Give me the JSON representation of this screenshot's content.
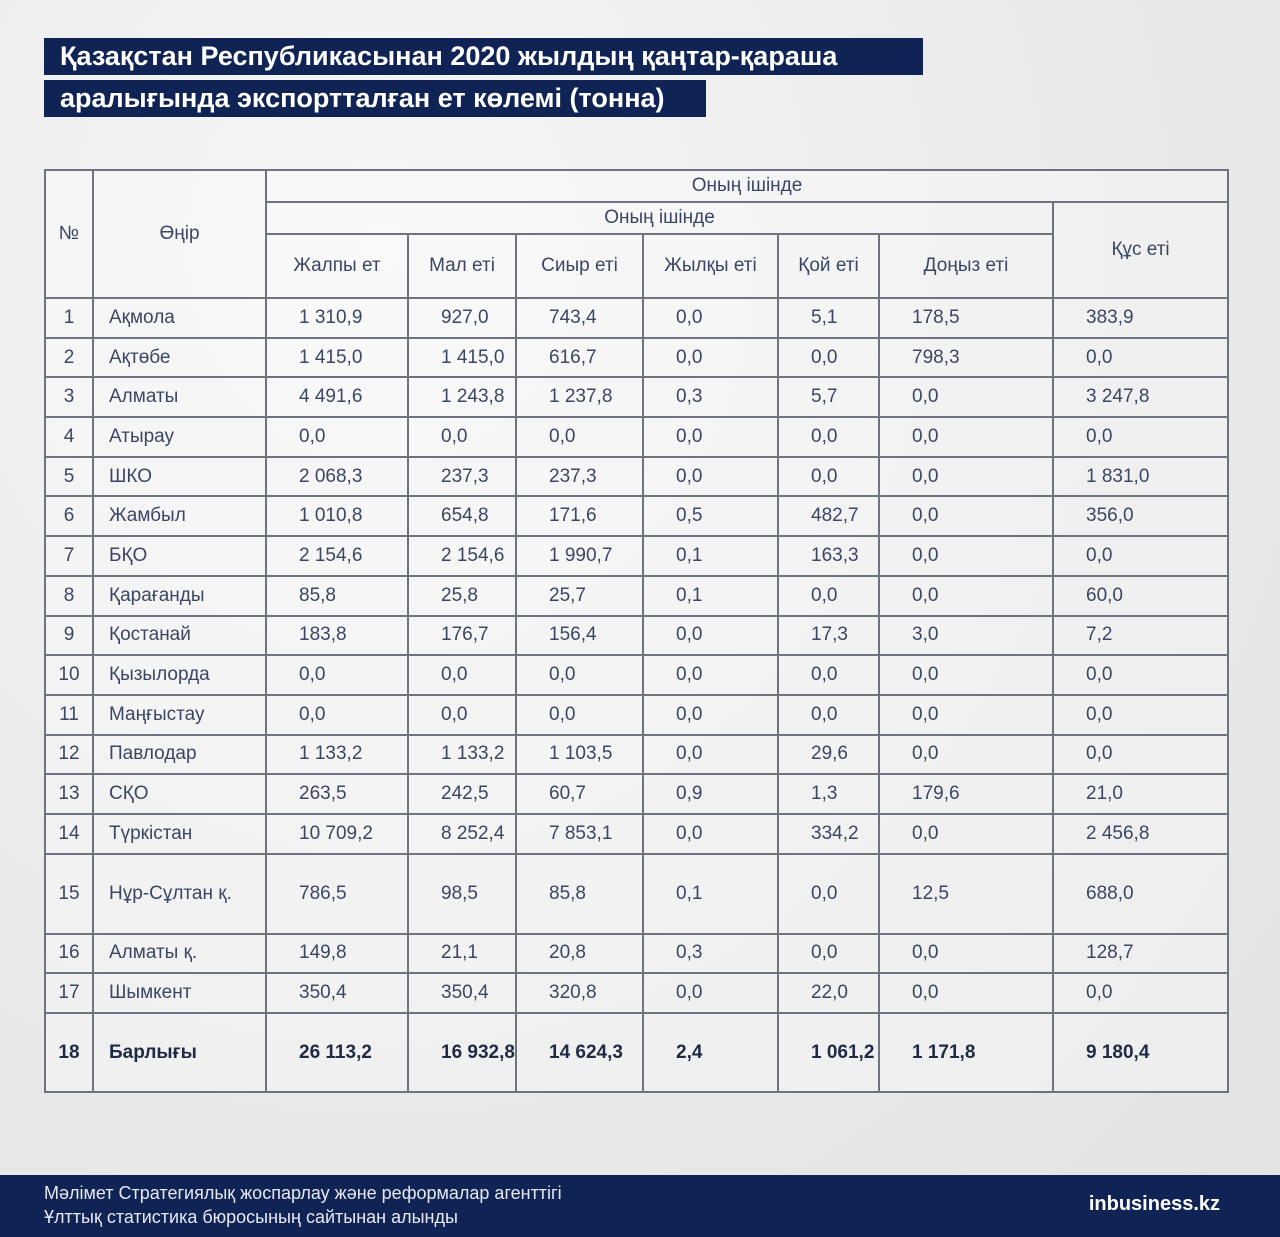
{
  "title": {
    "line1": "Қазақстан Республикасынан 2020 жылдың қаңтар-қараша",
    "line2": "аралығында экспортталған ет көлемі (тонна)"
  },
  "table": {
    "headers": {
      "num": "№",
      "region": "Өңір",
      "group_outer": "Оның ішінде",
      "group_inner": "Оның ішінде",
      "total_meat": "Жалпы ет",
      "livestock": "Мал еті",
      "beef": "Сиыр еті",
      "horse": "Жылқы еті",
      "mutton": "Қой еті",
      "pork": "Доңыз еті",
      "poultry": "Құс еті"
    },
    "rows": [
      {
        "n": "1",
        "region": "Ақмола",
        "v": [
          "1 310,9",
          "927,0",
          "743,4",
          "0,0",
          "5,1",
          "178,5",
          "383,9"
        ]
      },
      {
        "n": "2",
        "region": "Ақтөбе",
        "v": [
          "1 415,0",
          "1 415,0",
          "616,7",
          "0,0",
          "0,0",
          "798,3",
          "0,0"
        ]
      },
      {
        "n": "3",
        "region": "Алматы",
        "v": [
          "4 491,6",
          "1 243,8",
          "1 237,8",
          "0,3",
          "5,7",
          "0,0",
          "3 247,8"
        ]
      },
      {
        "n": "4",
        "region": "Атырау",
        "v": [
          "0,0",
          "0,0",
          "0,0",
          "0,0",
          "0,0",
          "0,0",
          "0,0"
        ]
      },
      {
        "n": "5",
        "region": "ШКО",
        "v": [
          "2 068,3",
          "237,3",
          "237,3",
          "0,0",
          "0,0",
          "0,0",
          "1 831,0"
        ]
      },
      {
        "n": "6",
        "region": "Жамбыл",
        "v": [
          "1 010,8",
          "654,8",
          "171,6",
          "0,5",
          "482,7",
          "0,0",
          "356,0"
        ]
      },
      {
        "n": "7",
        "region": "БҚО",
        "v": [
          "2 154,6",
          "2 154,6",
          "1 990,7",
          "0,1",
          "163,3",
          "0,0",
          "0,0"
        ]
      },
      {
        "n": "8",
        "region": "Қарағанды",
        "v": [
          "85,8",
          "25,8",
          "25,7",
          "0,1",
          "0,0",
          "0,0",
          "60,0"
        ]
      },
      {
        "n": "9",
        "region": "Қостанай",
        "v": [
          "183,8",
          "176,7",
          "156,4",
          "0,0",
          "17,3",
          "3,0",
          "7,2"
        ]
      },
      {
        "n": "10",
        "region": "Қызылорда",
        "v": [
          "0,0",
          "0,0",
          "0,0",
          "0,0",
          "0,0",
          "0,0",
          "0,0"
        ]
      },
      {
        "n": "11",
        "region": "Маңғыстау",
        "v": [
          "0,0",
          "0,0",
          "0,0",
          "0,0",
          "0,0",
          "0,0",
          "0,0"
        ]
      },
      {
        "n": "12",
        "region": "Павлодар",
        "v": [
          "1 133,2",
          "1 133,2",
          "1 103,5",
          "0,0",
          "29,6",
          "0,0",
          "0,0"
        ]
      },
      {
        "n": "13",
        "region": "СҚО",
        "v": [
          "263,5",
          "242,5",
          "60,7",
          "0,9",
          "1,3",
          "179,6",
          "21,0"
        ]
      },
      {
        "n": "14",
        "region": "Түркістан",
        "v": [
          "10 709,2",
          "8 252,4",
          "7 853,1",
          "0,0",
          "334,2",
          "0,0",
          "2 456,8"
        ]
      },
      {
        "n": "15",
        "region": "Нұр-Сұлтан қ.",
        "v": [
          "786,5",
          "98,5",
          "85,8",
          "0,1",
          "0,0",
          "12,5",
          "688,0"
        ]
      },
      {
        "n": "16",
        "region": "Алматы қ.",
        "v": [
          "149,8",
          "21,1",
          "20,8",
          "0,3",
          "0,0",
          "0,0",
          "128,7"
        ]
      },
      {
        "n": "17",
        "region": "Шымкент",
        "v": [
          "350,4",
          "350,4",
          "320,8",
          "0,0",
          "22,0",
          "0,0",
          "0,0"
        ]
      }
    ],
    "total": {
      "n": "18",
      "region": "Барлығы",
      "v": [
        "26 113,2",
        "16 932,8",
        "14 624,3",
        "2,4",
        "1 061,2",
        "1 171,8",
        "9 180,4"
      ]
    }
  },
  "footer": {
    "source_line1": "Мәлімет Стратегиялық жоспарлау және реформалар агенттігі",
    "source_line2": "Ұлттық статистика бюросының сайтынан алынды",
    "logo": "inbusiness.kz"
  }
}
